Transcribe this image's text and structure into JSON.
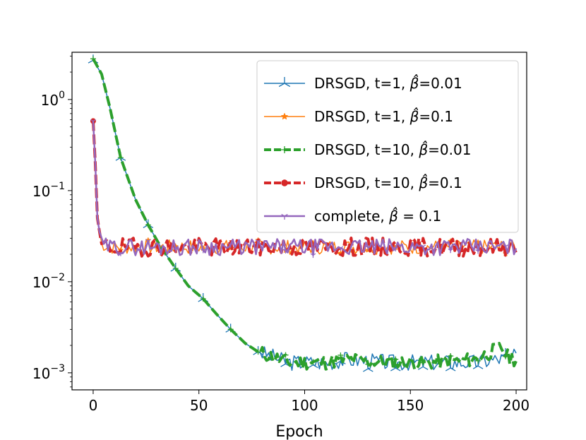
{
  "chart_data": {
    "type": "line",
    "title": "",
    "xlabel": "Epoch",
    "ylabel": "",
    "yscale": "log",
    "xlim": [
      -10,
      205
    ],
    "ylim": [
      0.00065,
      3.3
    ],
    "xticks": [
      0,
      50,
      100,
      150,
      200
    ],
    "xtick_labels": [
      "0",
      "50",
      "100",
      "150",
      "200"
    ],
    "yticks": [
      {
        "value": 1,
        "base": "10",
        "exp": "0"
      },
      {
        "value": 0.1,
        "base": "10",
        "exp": "−1"
      },
      {
        "value": 0.01,
        "base": "10",
        "exp": "−2"
      },
      {
        "value": 0.001,
        "base": "10",
        "exp": "−3"
      }
    ],
    "grid": false,
    "legend_position": "top-right",
    "series": [
      {
        "name": "DRSGD, t=1, β̂=0.01",
        "label_prefix": "DRSGD, t=1, ",
        "label_beta": "β̂",
        "label_suffix": "=0.01",
        "color": "#1f77b4",
        "width": 1.5,
        "dash": "",
        "marker": "tri",
        "keypoints": [
          [
            0,
            2.7
          ],
          [
            4,
            1.9
          ],
          [
            8,
            0.8
          ],
          [
            13,
            0.23
          ],
          [
            20,
            0.08
          ],
          [
            26,
            0.042
          ],
          [
            32,
            0.024
          ],
          [
            39,
            0.014
          ],
          [
            45,
            0.009
          ],
          [
            52,
            0.0065
          ],
          [
            58,
            0.0045
          ],
          [
            65,
            0.003
          ],
          [
            72,
            0.0021
          ],
          [
            78,
            0.0017
          ],
          [
            85,
            0.0015
          ],
          [
            92,
            0.0013
          ],
          [
            100,
            0.0013
          ],
          [
            110,
            0.0013
          ],
          [
            120,
            0.0014
          ],
          [
            140,
            0.0013
          ],
          [
            160,
            0.0013
          ],
          [
            180,
            0.0013
          ],
          [
            200,
            0.0015
          ]
        ],
        "noise_start": 80,
        "noise_amp": 0.09,
        "seed": 3
      },
      {
        "name": "DRSGD, t=1, β̂=0.1",
        "label_prefix": "DRSGD, t=1, ",
        "label_beta": "β̂",
        "label_suffix": "=0.1",
        "color": "#ff7f0e",
        "width": 1.5,
        "dash": "",
        "marker": "star",
        "keypoints": [
          [
            0,
            0.58
          ],
          [
            1,
            0.2
          ],
          [
            2,
            0.05
          ],
          [
            4,
            0.026
          ],
          [
            8,
            0.024
          ],
          [
            200,
            0.024
          ]
        ],
        "noise_start": 4,
        "noise_amp": 0.08,
        "seed": 7
      },
      {
        "name": "DRSGD, t=10, β̂=0.01",
        "label_prefix": "DRSGD, t=10, ",
        "label_beta": "β̂",
        "label_suffix": "=0.01",
        "color": "#2ca02c",
        "width": 4,
        "dash": "14,5",
        "marker": "plus",
        "keypoints": [
          [
            0,
            2.8
          ],
          [
            4,
            1.9
          ],
          [
            8,
            0.8
          ],
          [
            13,
            0.23
          ],
          [
            20,
            0.08
          ],
          [
            26,
            0.042
          ],
          [
            32,
            0.024
          ],
          [
            39,
            0.014
          ],
          [
            45,
            0.009
          ],
          [
            52,
            0.0065
          ],
          [
            58,
            0.0045
          ],
          [
            65,
            0.003
          ],
          [
            72,
            0.0021
          ],
          [
            78,
            0.0017
          ],
          [
            85,
            0.0015
          ],
          [
            92,
            0.0013
          ],
          [
            100,
            0.0013
          ],
          [
            110,
            0.0013
          ],
          [
            120,
            0.0014
          ],
          [
            140,
            0.0013
          ],
          [
            160,
            0.0013
          ],
          [
            180,
            0.0014
          ],
          [
            193,
            0.0019
          ],
          [
            196,
            0.0015
          ],
          [
            200,
            0.0014
          ]
        ],
        "noise_start": 80,
        "noise_amp": 0.08,
        "seed": 11
      },
      {
        "name": "DRSGD, t=10, β̂=0.1",
        "label_prefix": "DRSGD, t=10, ",
        "label_beta": "β̂",
        "label_suffix": "=0.1",
        "color": "#d62728",
        "width": 4,
        "dash": "14,5",
        "marker": "circle",
        "keypoints": [
          [
            0,
            0.58
          ],
          [
            1,
            0.2
          ],
          [
            2,
            0.05
          ],
          [
            4,
            0.025
          ],
          [
            8,
            0.024
          ],
          [
            200,
            0.024
          ]
        ],
        "noise_start": 4,
        "noise_amp": 0.1,
        "seed": 19
      },
      {
        "name": "complete, β̂ = 0.1",
        "label_prefix": "complete, ",
        "label_beta": "β̂",
        "label_suffix": " = 0.1",
        "color": "#9467bd",
        "width": 2.5,
        "dash": "",
        "marker": "tri_down",
        "keypoints": [
          [
            0,
            0.58
          ],
          [
            1,
            0.2
          ],
          [
            2,
            0.05
          ],
          [
            4,
            0.025
          ],
          [
            8,
            0.024
          ],
          [
            200,
            0.024
          ]
        ],
        "noise_start": 4,
        "noise_amp": 0.09,
        "seed": 29
      }
    ]
  }
}
